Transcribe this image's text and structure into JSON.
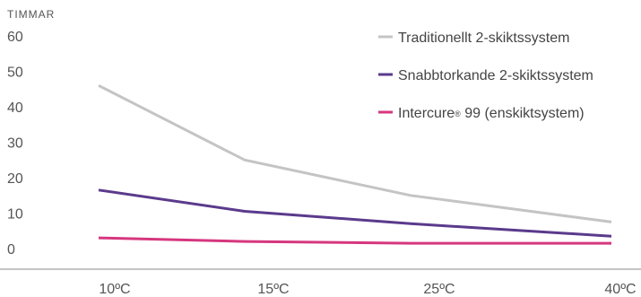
{
  "chart_data": {
    "type": "line",
    "y_unit_label": "TIMMAR",
    "categories": [
      "10ºC",
      "15ºC",
      "25ºC",
      "40ºC"
    ],
    "y_ticks": [
      0,
      10,
      20,
      30,
      40,
      50,
      60
    ],
    "ylim": [
      0,
      60
    ],
    "grid": false,
    "legend_position": "top-right",
    "series": [
      {
        "name": "Traditionellt 2-skiktssystem",
        "color": "#c4c4c4",
        "values": [
          46,
          25,
          15,
          7.5
        ]
      },
      {
        "name": "Snabbtorkande 2-skiktssystem",
        "color": "#5b3a8c",
        "values": [
          16.5,
          10.5,
          7,
          3.5
        ]
      },
      {
        "name_main": "Intercure",
        "name_mark": "®",
        "name_rest": " 99 (enskiktsystem)",
        "color": "#d6377f",
        "values": [
          3,
          2,
          1.5,
          1.5
        ]
      }
    ]
  }
}
